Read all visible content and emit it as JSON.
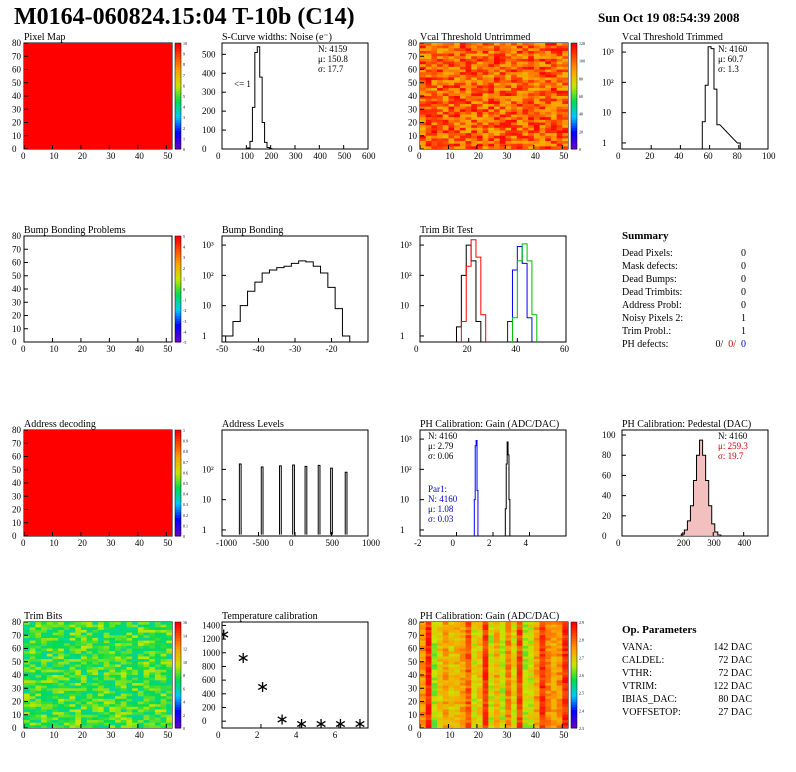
{
  "header": {
    "title": "M0164-060824.15:04 T-10b (C14)",
    "date": "Sun Oct 19 08:54:39 2008"
  },
  "panels": [
    {
      "id": "pixel-map",
      "title": "Pixel Map",
      "type": "heatmap",
      "fill": "flat-red",
      "xlim": [
        0,
        52
      ],
      "ylim": [
        0,
        80
      ],
      "xticks": [
        "0",
        "10",
        "20",
        "30",
        "40",
        "50"
      ],
      "yticks": [
        "0",
        "10",
        "20",
        "30",
        "40",
        "50",
        "60",
        "70",
        "80"
      ],
      "zticks": [
        "0",
        "1",
        "2",
        "3",
        "4",
        "5",
        "6",
        "7",
        "8",
        "9",
        "10"
      ]
    },
    {
      "id": "scurve",
      "title": "S-Curve widths: Noise (e⁻)",
      "type": "histogram",
      "xlim": [
        0,
        600
      ],
      "ylim": [
        0,
        560
      ],
      "xticks": [
        "0",
        "100",
        "200",
        "300",
        "400",
        "500",
        "600"
      ],
      "yticks": [
        "0",
        "100",
        "200",
        "300",
        "400",
        "500"
      ],
      "stats": [
        "N: 4159",
        "μ: 150.8",
        "σ: 17.7"
      ],
      "annotation": "<= 1"
    },
    {
      "id": "vcal-untrimmed",
      "title": "Vcal Threshold Untrimmed",
      "type": "heatmap",
      "fill": "noisy-red-orange",
      "xlim": [
        0,
        52
      ],
      "ylim": [
        0,
        80
      ],
      "xticks": [
        "0",
        "10",
        "20",
        "30",
        "40",
        "50"
      ],
      "yticks": [
        "0",
        "10",
        "20",
        "30",
        "40",
        "50",
        "60",
        "70",
        "80"
      ],
      "zticks": [
        "0",
        "20",
        "40",
        "60",
        "80",
        "100",
        "120"
      ]
    },
    {
      "id": "vcal-trimmed",
      "title": "Vcal Threshold Trimmed",
      "type": "histogram",
      "log": true,
      "xlim": [
        0,
        100
      ],
      "xticks": [
        "0",
        "20",
        "40",
        "60",
        "80",
        "100"
      ],
      "yticks": [
        "1",
        "10",
        "10²",
        "10³"
      ],
      "stats": [
        "N: 4160",
        "μ: 60.7",
        "σ:  1.3"
      ]
    },
    {
      "id": "bump-problems",
      "title": "Bump Bonding Problems",
      "type": "heatmap",
      "fill": "empty",
      "xlim": [
        0,
        52
      ],
      "ylim": [
        0,
        80
      ],
      "xticks": [
        "0",
        "10",
        "20",
        "30",
        "40",
        "50"
      ],
      "yticks": [
        "0",
        "10",
        "20",
        "30",
        "40",
        "50",
        "60",
        "70",
        "80"
      ],
      "zticks": [
        "-5",
        "-4",
        "-3",
        "-2",
        "-1",
        "0",
        "1",
        "2",
        "3",
        "4",
        "5"
      ]
    },
    {
      "id": "bump-bonding",
      "title": "Bump Bonding",
      "type": "histogram",
      "log": true,
      "xlim": [
        -50,
        -10
      ],
      "xticks": [
        "-50",
        "-40",
        "-30",
        "-20"
      ],
      "yticks": [
        "1",
        "10",
        "10²",
        "10³"
      ]
    },
    {
      "id": "trim-bit",
      "title": "Trim Bit Test",
      "type": "histogram",
      "log": true,
      "xlim": [
        0,
        60
      ],
      "xticks": [
        "0",
        "20",
        "40",
        "60"
      ],
      "yticks": [
        "1",
        "10",
        "10²",
        "10³"
      ]
    },
    {
      "id": "address-decoding",
      "title": "Address decoding",
      "type": "heatmap",
      "fill": "flat-red",
      "xlim": [
        0,
        52
      ],
      "ylim": [
        0,
        80
      ],
      "xticks": [
        "0",
        "10",
        "20",
        "30",
        "40",
        "50"
      ],
      "yticks": [
        "0",
        "10",
        "20",
        "30",
        "40",
        "50",
        "60",
        "70",
        "80"
      ],
      "zticks": [
        "0",
        "0.1",
        "0.2",
        "0.3",
        "0.4",
        "0.5",
        "0.6",
        "0.7",
        "0.8",
        "0.9",
        "1"
      ]
    },
    {
      "id": "address-levels",
      "title": "Address Levels",
      "type": "histogram",
      "log": true,
      "xlim": [
        -1000,
        1000
      ],
      "xticks": [
        "-1000",
        "-500",
        "0",
        "500",
        "1000"
      ],
      "yticks": [
        "1",
        "10",
        "10²"
      ]
    },
    {
      "id": "ph-gain",
      "title": "PH Calibration: Gain (ADC/DAC)",
      "type": "histogram",
      "log": true,
      "xlim": [
        -2,
        6
      ],
      "xticks": [
        "-2",
        "0",
        "2",
        "4"
      ],
      "yticks": [
        "1",
        "10",
        "10²",
        "10³"
      ],
      "stats": [
        "N: 4160",
        "μ: 2.79",
        "σ: 0.06"
      ],
      "stats2": [
        "Par1:",
        "N: 4160",
        "μ: 1.08",
        "σ: 0.03"
      ]
    },
    {
      "id": "ph-pedestal",
      "title": "PH Calibration: Pedestal (DAC)",
      "type": "histogram",
      "xlim": [
        0,
        480
      ],
      "ylim": [
        0,
        105
      ],
      "xticks": [
        "0",
        "200",
        "300",
        "400"
      ],
      "yticks": [
        "0",
        "20",
        "40",
        "60",
        "80",
        "100"
      ],
      "stats": [
        "N: 4160",
        "μ: 259.3",
        "σ: 19.7"
      ]
    },
    {
      "id": "trim-bits",
      "title": "Trim Bits",
      "type": "heatmap",
      "fill": "noisy-green",
      "xlim": [
        0,
        52
      ],
      "ylim": [
        0,
        80
      ],
      "xticks": [
        "0",
        "10",
        "20",
        "30",
        "40",
        "50"
      ],
      "yticks": [
        "0",
        "10",
        "20",
        "30",
        "40",
        "50",
        "60",
        "70",
        "80"
      ],
      "zticks": [
        "0",
        "2",
        "4",
        "6",
        "8",
        "10",
        "12",
        "14",
        "16"
      ]
    },
    {
      "id": "temperature",
      "title": "Temperature calibration",
      "type": "scatter",
      "xlim": [
        0,
        7.5
      ],
      "ylim": [
        -100,
        1450
      ],
      "xticks": [
        "0",
        "2",
        "4",
        "6"
      ],
      "yticks": [
        "0",
        "200",
        "400",
        "600",
        "800",
        "1000",
        "1200",
        "1400"
      ]
    },
    {
      "id": "ph-gain-map",
      "title": "PH Calibration: Gain (ADC/DAC)",
      "type": "heatmap",
      "fill": "striped",
      "xlim": [
        0,
        52
      ],
      "ylim": [
        0,
        80
      ],
      "xticks": [
        "0",
        "10",
        "20",
        "30",
        "40",
        "50"
      ],
      "yticks": [
        "0",
        "10",
        "20",
        "30",
        "40",
        "50",
        "60",
        "70",
        "80"
      ],
      "zticks": [
        "2.3",
        "2.4",
        "2.5",
        "2.6",
        "2.7",
        "2.8",
        "2.9"
      ]
    }
  ],
  "chart_data": [
    {
      "type": "histogram",
      "title": "S-Curve widths: Noise (e⁻)",
      "x": [
        110,
        120,
        130,
        140,
        150,
        160,
        170,
        180,
        190,
        200
      ],
      "values": [
        5,
        40,
        220,
        510,
        540,
        380,
        140,
        35,
        8,
        2
      ]
    },
    {
      "type": "histogram",
      "title": "Vcal Threshold Trimmed",
      "x": [
        56,
        58,
        60,
        62,
        64,
        66,
        80
      ],
      "values": [
        5,
        80,
        1500,
        1300,
        60,
        4,
        1
      ]
    },
    {
      "type": "histogram",
      "title": "Bump Bonding",
      "x": [
        -48,
        -46,
        -44,
        -42,
        -40,
        -38,
        -36,
        -34,
        -32,
        -30,
        -28,
        -26,
        -24,
        -22,
        -20,
        -18,
        -16
      ],
      "values": [
        1,
        3,
        10,
        30,
        60,
        120,
        150,
        180,
        200,
        250,
        300,
        280,
        200,
        120,
        40,
        8,
        1
      ]
    },
    {
      "type": "histogram",
      "title": "Trim Bit Test",
      "series": [
        {
          "color": "#000000",
          "x": [
            16,
            18,
            20,
            22,
            24
          ],
          "values": [
            2,
            100,
            1000,
            300,
            3
          ]
        },
        {
          "color": "#ff0000",
          "x": [
            18,
            20,
            22,
            24,
            26
          ],
          "values": [
            3,
            200,
            1500,
            400,
            5
          ]
        },
        {
          "color": "#0000ff",
          "x": [
            37,
            39,
            41,
            43,
            45
          ],
          "values": [
            3,
            150,
            900,
            250,
            4
          ]
        },
        {
          "color": "#00bb00",
          "x": [
            39,
            41,
            43,
            45,
            47
          ],
          "values": [
            4,
            300,
            1100,
            300,
            5
          ]
        }
      ]
    },
    {
      "type": "histogram",
      "title": "Address Levels",
      "x": [
        -750,
        -450,
        -200,
        -20,
        150,
        330,
        500,
        700
      ],
      "values": [
        150,
        120,
        130,
        140,
        125,
        135,
        110,
        80
      ]
    },
    {
      "type": "histogram",
      "title": "PH Calibration: Gain (ADC/DAC)",
      "series": [
        {
          "color": "#000000",
          "x": [
            2.7,
            2.75,
            2.8,
            2.85,
            2.9
          ],
          "values": [
            5,
            150,
            800,
            300,
            10
          ]
        },
        {
          "color": "#0000ff",
          "x": [
            1.0,
            1.05,
            1.1,
            1.15
          ],
          "values": [
            10,
            600,
            900,
            20
          ]
        }
      ]
    },
    {
      "type": "histogram",
      "title": "PH Calibration: Pedestal (DAC)",
      "x": [
        200,
        210,
        220,
        230,
        240,
        250,
        260,
        270,
        280,
        290,
        300,
        310,
        320
      ],
      "values": [
        2,
        6,
        15,
        30,
        55,
        80,
        95,
        80,
        55,
        30,
        12,
        4,
        1
      ]
    },
    {
      "type": "scatter",
      "title": "Temperature calibration",
      "x": [
        0,
        1,
        2,
        3,
        4,
        5,
        6,
        7
      ],
      "y": [
        1300,
        950,
        530,
        50,
        -10,
        -10,
        -10,
        -10
      ]
    }
  ],
  "summary": {
    "title": "Summary",
    "rows": [
      {
        "label": "Dead Pixels:",
        "value": "0"
      },
      {
        "label": "Mask defects:",
        "value": "0"
      },
      {
        "label": "Dead Bumps:",
        "value": "0"
      },
      {
        "label": "Dead Trimbits:",
        "value": "0"
      },
      {
        "label": "Address Probl:",
        "value": "0"
      },
      {
        "label": "Noisy Pixels 2:",
        "value": "1"
      },
      {
        "label": "Trim Probl.:",
        "value": "1"
      }
    ],
    "ph_label": "PH defects:",
    "ph_values": [
      "0/",
      "0/",
      "0"
    ],
    "ph_colors": [
      "#000000",
      "#cc0000",
      "#0000cc"
    ]
  },
  "op_params": {
    "title": "Op. Parameters",
    "rows": [
      {
        "label": "VANA:",
        "value": "142 DAC"
      },
      {
        "label": "CALDEL:",
        "value": "72 DAC"
      },
      {
        "label": "VTHR:",
        "value": "72 DAC"
      },
      {
        "label": "VTRIM:",
        "value": "122 DAC"
      },
      {
        "label": "IBIAS_DAC:",
        "value": "80 DAC"
      },
      {
        "label": "VOFFSETOP:",
        "value": "27 DAC"
      }
    ]
  }
}
